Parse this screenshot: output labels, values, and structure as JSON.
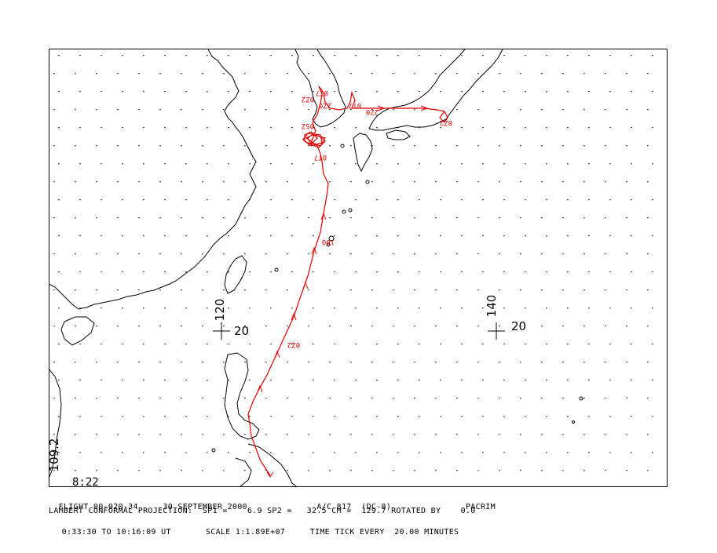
{
  "map": {
    "frame_color": "#000000",
    "coast_color": "#000000",
    "track_color": "#e00000",
    "grid_labels": {
      "lon_120": "120",
      "lat_20_a": "20",
      "lon_140": "140",
      "lat_20_b": "20",
      "corner_left": "109.2"
    },
    "corner_time": "8:22",
    "track_labels": [
      "0Z2",
      "100",
      "2Z0",
      "2Z0",
      "0T7",
      "0Z2",
      "0SZ",
      "0T7",
      "0Z2",
      "0T7"
    ]
  },
  "footer": {
    "flight": "FLIGHT 00-020-34",
    "date": "30 SEPTEMBER 2000",
    "aircraft": "A/C 817  (DC-8)",
    "mission": "PACRIM",
    "projection_line": "LAMBERT CONFORMAL PROJECTION:  SP1 =    6.9 SP2 =   32.5 CM =  129.7 ROTATED BY    0.0",
    "time_range": "0:33:30 TO 10:16:09 UT",
    "scale": "SCALE 1:1.89E+07",
    "time_tick": "TIME TICK EVERY  20.00 MINUTES"
  }
}
